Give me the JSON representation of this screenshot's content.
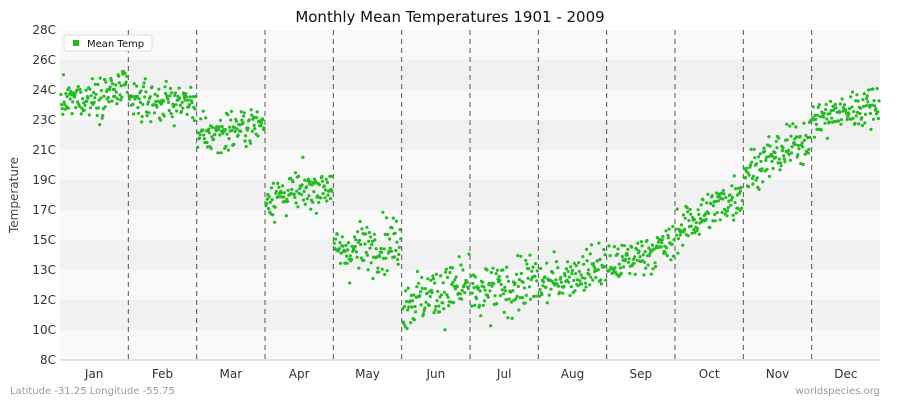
{
  "chart_data": {
    "type": "scatter",
    "title": "Monthly Mean Temperatures 1901 - 2009",
    "xlabel": "",
    "ylabel": "Temperature",
    "categories": [
      "Jan",
      "Feb",
      "Mar",
      "Apr",
      "May",
      "Jun",
      "Jul",
      "Aug",
      "Sep",
      "Oct",
      "Nov",
      "Dec"
    ],
    "y_ticks": [
      "8C",
      "10C",
      "12C",
      "13C",
      "15C",
      "17C",
      "19C",
      "21C",
      "23C",
      "24C",
      "26C",
      "28C"
    ],
    "ylim": [
      8,
      28
    ],
    "grid": true,
    "legend_position": "top-left",
    "series": [
      {
        "name": "Mean Temp",
        "color": "#22bb22",
        "per_month_trend": [
          {
            "month": "Jan",
            "start": 23.6,
            "end": 24.4,
            "spread": 0.9
          },
          {
            "month": "Feb",
            "start": 23.7,
            "end": 23.6,
            "spread": 0.9
          },
          {
            "month": "Mar",
            "start": 21.5,
            "end": 22.4,
            "spread": 0.9
          },
          {
            "month": "Apr",
            "start": 17.8,
            "end": 18.6,
            "spread": 0.9
          },
          {
            "month": "May",
            "start": 14.5,
            "end": 15.2,
            "spread": 1.2
          },
          {
            "month": "Jun",
            "start": 11.5,
            "end": 12.6,
            "spread": 1.3
          },
          {
            "month": "Jul",
            "start": 11.8,
            "end": 12.8,
            "spread": 1.3
          },
          {
            "month": "Aug",
            "start": 12.5,
            "end": 13.8,
            "spread": 1.0
          },
          {
            "month": "Sep",
            "start": 13.6,
            "end": 15.1,
            "spread": 0.9
          },
          {
            "month": "Oct",
            "start": 15.8,
            "end": 18.2,
            "spread": 1.0
          },
          {
            "month": "Nov",
            "start": 19.3,
            "end": 21.6,
            "spread": 1.0
          },
          {
            "month": "Dec",
            "start": 22.5,
            "end": 23.6,
            "spread": 0.9
          }
        ]
      }
    ]
  },
  "footer": {
    "left": "Latitude -31.25 Longitude -55.75",
    "right": "worldspecies.org"
  }
}
